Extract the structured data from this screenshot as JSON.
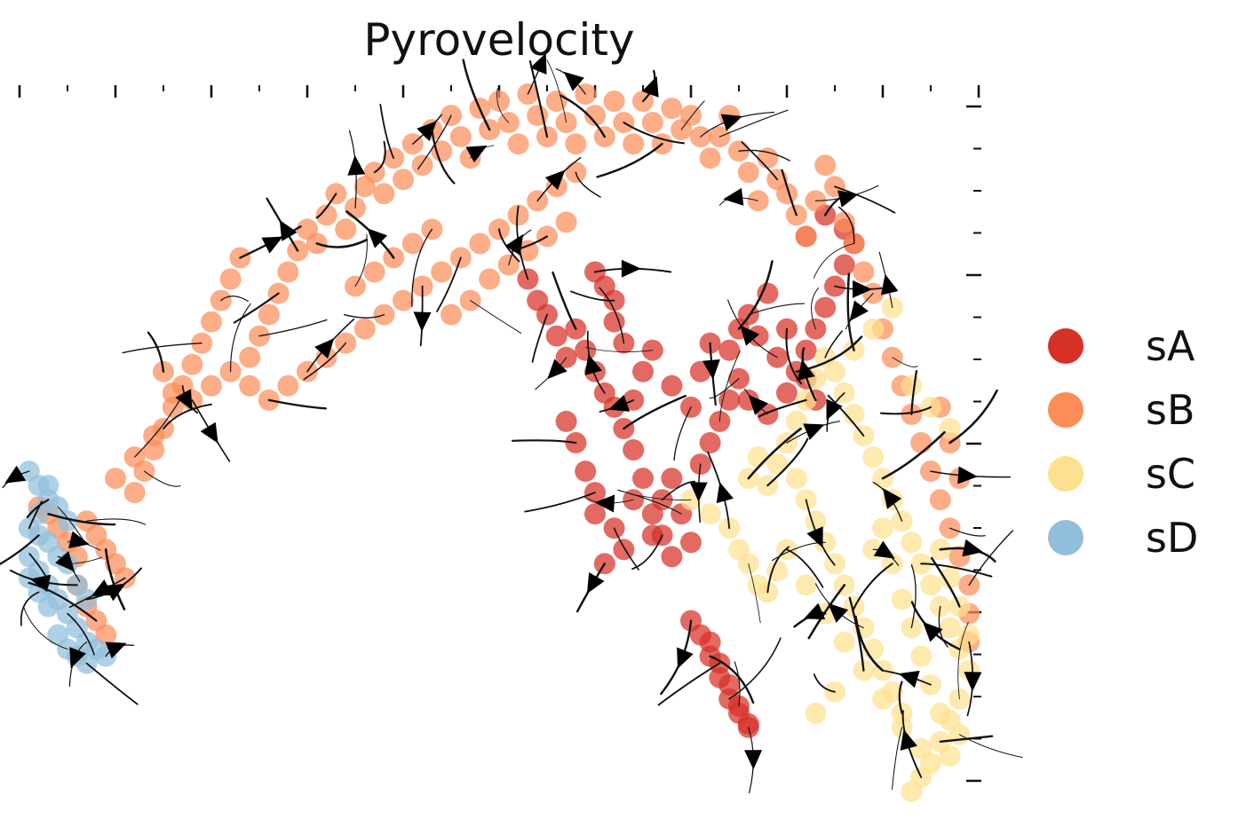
{
  "chart_data": {
    "type": "scatter",
    "title": "Pyrovelocity",
    "xlabel": "",
    "ylabel": "",
    "xlim": [
      0,
      100
    ],
    "ylim": [
      0,
      100
    ],
    "grid": false,
    "legend_position": "right",
    "overlay": "velocity-streamlines",
    "series": [
      {
        "name": "sA",
        "color": "#d73027",
        "points": [
          [
            60,
            74
          ],
          [
            61,
            72
          ],
          [
            62,
            70
          ],
          [
            62,
            67
          ],
          [
            63,
            64
          ],
          [
            60,
            60
          ],
          [
            61,
            57
          ],
          [
            62,
            55
          ],
          [
            63,
            52
          ],
          [
            64,
            49
          ],
          [
            58,
            66
          ],
          [
            59,
            63
          ],
          [
            57,
            62
          ],
          [
            56,
            65
          ],
          [
            55,
            68
          ],
          [
            54,
            70
          ],
          [
            53,
            73
          ],
          [
            65,
            45
          ],
          [
            64,
            42
          ],
          [
            66,
            40
          ],
          [
            67,
            37
          ],
          [
            68,
            34
          ],
          [
            62,
            38
          ],
          [
            63,
            35
          ],
          [
            61,
            33
          ],
          [
            60,
            40
          ],
          [
            60,
            43
          ],
          [
            59,
            46
          ],
          [
            58,
            50
          ],
          [
            57,
            53
          ],
          [
            71,
            47
          ],
          [
            72,
            50
          ],
          [
            73,
            53
          ],
          [
            74,
            56
          ],
          [
            75,
            59
          ],
          [
            76,
            56
          ],
          [
            78,
            54
          ],
          [
            80,
            57
          ],
          [
            81,
            60
          ],
          [
            82,
            63
          ],
          [
            83,
            66
          ],
          [
            84,
            69
          ],
          [
            85,
            72
          ],
          [
            86,
            75
          ],
          [
            87,
            78
          ],
          [
            86,
            80
          ],
          [
            84,
            82
          ],
          [
            82,
            79
          ],
          [
            79,
            62
          ],
          [
            77,
            65
          ],
          [
            76,
            68
          ],
          [
            78,
            71
          ],
          [
            80,
            66
          ],
          [
            82,
            59
          ],
          [
            83,
            56
          ],
          [
            71,
            23
          ],
          [
            72,
            20
          ],
          [
            73,
            17
          ],
          [
            74,
            14
          ],
          [
            75,
            12
          ],
          [
            76,
            10
          ],
          [
            72,
            22
          ],
          [
            73,
            19
          ],
          [
            74,
            16
          ],
          [
            75,
            13
          ],
          [
            76,
            10.5
          ],
          [
            70,
            25
          ],
          [
            66,
            37
          ],
          [
            67,
            42
          ],
          [
            68,
            45
          ],
          [
            69,
            40
          ],
          [
            70,
            36
          ],
          [
            64,
            56
          ],
          [
            65,
            60
          ],
          [
            66,
            63
          ],
          [
            68,
            58
          ],
          [
            70,
            55
          ],
          [
            71,
            60
          ],
          [
            72,
            64
          ],
          [
            74,
            63
          ],
          [
            75,
            66
          ]
        ]
      },
      {
        "name": "sB",
        "color": "#fc8d59",
        "points": [
          [
            2,
            41
          ],
          [
            3,
            40
          ],
          [
            4,
            38
          ],
          [
            5,
            36
          ],
          [
            6,
            34
          ],
          [
            7,
            39
          ],
          [
            8,
            37
          ],
          [
            9,
            35
          ],
          [
            10,
            33
          ],
          [
            11,
            31
          ],
          [
            12,
            43
          ],
          [
            13,
            46
          ],
          [
            14,
            49
          ],
          [
            15,
            52
          ],
          [
            16,
            55
          ],
          [
            17,
            58
          ],
          [
            18,
            61
          ],
          [
            19,
            64
          ],
          [
            20,
            67
          ],
          [
            21,
            70
          ],
          [
            22,
            73
          ],
          [
            23,
            76
          ],
          [
            24,
            62
          ],
          [
            25,
            65
          ],
          [
            26,
            68
          ],
          [
            27,
            71
          ],
          [
            28,
            74
          ],
          [
            29,
            77
          ],
          [
            30,
            80
          ],
          [
            31,
            78
          ],
          [
            32,
            82
          ],
          [
            33,
            85
          ],
          [
            34,
            80
          ],
          [
            35,
            83
          ],
          [
            36,
            86
          ],
          [
            37,
            88
          ],
          [
            38,
            85
          ],
          [
            39,
            90
          ],
          [
            40,
            87
          ],
          [
            41,
            92
          ],
          [
            42,
            89
          ],
          [
            43,
            94
          ],
          [
            44,
            91
          ],
          [
            45,
            96
          ],
          [
            46,
            93
          ],
          [
            47,
            90
          ],
          [
            48,
            97
          ],
          [
            49,
            94
          ],
          [
            50,
            98
          ],
          [
            51,
            95
          ],
          [
            52,
            92
          ],
          [
            53,
            99
          ],
          [
            54,
            96
          ],
          [
            55,
            93
          ],
          [
            56,
            98
          ],
          [
            57,
            95
          ],
          [
            58,
            92
          ],
          [
            59,
            99
          ],
          [
            60,
            96
          ],
          [
            61,
            93
          ],
          [
            62,
            98
          ],
          [
            63,
            95
          ],
          [
            64,
            92
          ],
          [
            65,
            98
          ],
          [
            66,
            95
          ],
          [
            67,
            92
          ],
          [
            68,
            97
          ],
          [
            69,
            94
          ],
          [
            70,
            96
          ],
          [
            71,
            93
          ],
          [
            72,
            90
          ],
          [
            73,
            93
          ],
          [
            74,
            96
          ],
          [
            75,
            91
          ],
          [
            76,
            88
          ],
          [
            77,
            84
          ],
          [
            78,
            90
          ],
          [
            79,
            87
          ],
          [
            80,
            85
          ],
          [
            81,
            82
          ],
          [
            82,
            79
          ],
          [
            83,
            84
          ],
          [
            84,
            89
          ],
          [
            85,
            86
          ],
          [
            86,
            81
          ],
          [
            87,
            78
          ],
          [
            88,
            74
          ],
          [
            89,
            71
          ],
          [
            90,
            66
          ],
          [
            91,
            62
          ],
          [
            92,
            58
          ],
          [
            93,
            54
          ],
          [
            94,
            50
          ],
          [
            95,
            46
          ],
          [
            96,
            42
          ],
          [
            97,
            38
          ],
          [
            98,
            34
          ],
          [
            99,
            30
          ],
          [
            99,
            26
          ],
          [
            99,
            22
          ],
          [
            98,
            45
          ],
          [
            97,
            50
          ],
          [
            96,
            55
          ],
          [
            15,
            60
          ],
          [
            16,
            57
          ],
          [
            18,
            56
          ],
          [
            20,
            58
          ],
          [
            22,
            60
          ],
          [
            24,
            58
          ],
          [
            26,
            56
          ],
          [
            28,
            58
          ],
          [
            30,
            60
          ],
          [
            32,
            62
          ],
          [
            34,
            64
          ],
          [
            36,
            66
          ],
          [
            38,
            68
          ],
          [
            40,
            70
          ],
          [
            42,
            72
          ],
          [
            44,
            74
          ],
          [
            46,
            76
          ],
          [
            48,
            78
          ],
          [
            50,
            80
          ],
          [
            52,
            82
          ],
          [
            54,
            84
          ],
          [
            56,
            86
          ],
          [
            58,
            88
          ],
          [
            45,
            68
          ],
          [
            47,
            70
          ],
          [
            49,
            73
          ],
          [
            51,
            75
          ],
          [
            53,
            77
          ],
          [
            55,
            79
          ],
          [
            57,
            81
          ],
          [
            35,
            72
          ],
          [
            37,
            74
          ],
          [
            39,
            76
          ],
          [
            41,
            78
          ],
          [
            43,
            80
          ],
          [
            10,
            45
          ],
          [
            12,
            48
          ],
          [
            14,
            51
          ],
          [
            6,
            30
          ],
          [
            7,
            27
          ],
          [
            8,
            25
          ],
          [
            9,
            23
          ]
        ]
      },
      {
        "name": "sC",
        "color": "#fee090",
        "points": [
          [
            70,
            42
          ],
          [
            72,
            40
          ],
          [
            74,
            38
          ],
          [
            75,
            35
          ],
          [
            76,
            33
          ],
          [
            77,
            30
          ],
          [
            78,
            44
          ],
          [
            79,
            47
          ],
          [
            80,
            50
          ],
          [
            81,
            53
          ],
          [
            82,
            56
          ],
          [
            83,
            59
          ],
          [
            84,
            62
          ],
          [
            85,
            60
          ],
          [
            86,
            57
          ],
          [
            87,
            54
          ],
          [
            88,
            51
          ],
          [
            89,
            48
          ],
          [
            90,
            45
          ],
          [
            91,
            42
          ],
          [
            92,
            39
          ],
          [
            93,
            36
          ],
          [
            94,
            33
          ],
          [
            95,
            30
          ],
          [
            96,
            27
          ],
          [
            97,
            24
          ],
          [
            98,
            21
          ],
          [
            99,
            18
          ],
          [
            98,
            14
          ],
          [
            97,
            11
          ],
          [
            96,
            8
          ],
          [
            95,
            5
          ],
          [
            94,
            3
          ],
          [
            93,
            1
          ],
          [
            92,
            12
          ],
          [
            91,
            15
          ],
          [
            90,
            18
          ],
          [
            89,
            21
          ],
          [
            88,
            24
          ],
          [
            87,
            27
          ],
          [
            86,
            30
          ],
          [
            85,
            33
          ],
          [
            84,
            36
          ],
          [
            83,
            39
          ],
          [
            82,
            42
          ],
          [
            81,
            45
          ],
          [
            80,
            35
          ],
          [
            79,
            32
          ],
          [
            78,
            29
          ],
          [
            82,
            30
          ],
          [
            84,
            26
          ],
          [
            86,
            22
          ],
          [
            88,
            18
          ],
          [
            90,
            14
          ],
          [
            92,
            10
          ],
          [
            94,
            7
          ],
          [
            89,
            35
          ],
          [
            90,
            38
          ],
          [
            91,
            33
          ],
          [
            92,
            28
          ],
          [
            93,
            24
          ],
          [
            94,
            20
          ],
          [
            95,
            16
          ],
          [
            96,
            12
          ],
          [
            76,
            45
          ],
          [
            77,
            48
          ],
          [
            87,
            63
          ],
          [
            89,
            66
          ],
          [
            91,
            69
          ],
          [
            93,
            58
          ],
          [
            95,
            55
          ],
          [
            97,
            52
          ],
          [
            85,
            15
          ],
          [
            83,
            12
          ],
          [
            96,
            35
          ],
          [
            97,
            31
          ],
          [
            98,
            27
          ],
          [
            99,
            23
          ],
          [
            98,
            9
          ],
          [
            97,
            6
          ]
        ]
      },
      {
        "name": "sD",
        "color": "#91bfdb",
        "points": [
          [
            1,
            46
          ],
          [
            2,
            44
          ],
          [
            3,
            42
          ],
          [
            2,
            40
          ],
          [
            1,
            38
          ],
          [
            3,
            36
          ],
          [
            4,
            34
          ],
          [
            2,
            32
          ],
          [
            3,
            30
          ],
          [
            4,
            28
          ],
          [
            5,
            26
          ],
          [
            6,
            24
          ],
          [
            7,
            22
          ],
          [
            4,
            23
          ],
          [
            5,
            21
          ],
          [
            6,
            20
          ],
          [
            7,
            19
          ],
          [
            8,
            21
          ],
          [
            9,
            20
          ],
          [
            3,
            27
          ],
          [
            2,
            29
          ],
          [
            1,
            34
          ],
          [
            5,
            33
          ],
          [
            6,
            30
          ],
          [
            7,
            28
          ],
          [
            5,
            39
          ],
          [
            4,
            41
          ],
          [
            3,
            44
          ],
          [
            2,
            37
          ],
          [
            1,
            31
          ]
        ]
      }
    ]
  }
}
